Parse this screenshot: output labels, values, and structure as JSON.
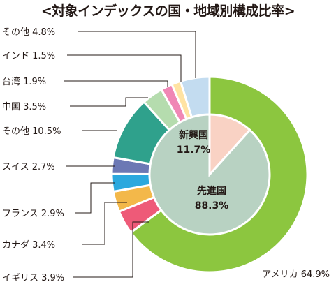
{
  "chart_data": {
    "type": "pie",
    "title": "<対象インデックスの国・地域別構成比率>",
    "outer": [
      {
        "name": "アメリカ",
        "value": 64.9,
        "label": "アメリカ 64.9%",
        "color": "#8cc63f"
      },
      {
        "name": "イギリス",
        "value": 3.9,
        "label": "イギリス 3.9%",
        "color": "#ee5a78"
      },
      {
        "name": "カナダ",
        "value": 3.4,
        "label": "カナダ 3.4%",
        "color": "#f3b84a"
      },
      {
        "name": "フランス",
        "value": 2.9,
        "label": "フランス 2.9%",
        "color": "#2ba8de"
      },
      {
        "name": "スイス",
        "value": 2.7,
        "label": "スイス 2.7%",
        "color": "#6c78b4"
      },
      {
        "name": "その他",
        "value": 10.5,
        "label": "その他 10.5%",
        "color": "#2fa18c"
      },
      {
        "name": "中国",
        "value": 3.5,
        "label": "中国 3.5%",
        "color": "#b5dcae"
      },
      {
        "name": "台湾",
        "value": 1.9,
        "label": "台湾 1.9%",
        "color": "#f087b5"
      },
      {
        "name": "インド",
        "value": 1.5,
        "label": "インド 1.5%",
        "color": "#ffe3a3"
      },
      {
        "name": "その他",
        "value": 4.8,
        "label": "その他 4.8%",
        "color": "#c3dcf0"
      }
    ],
    "inner": [
      {
        "name": "新興国",
        "value": 11.7,
        "label": "11.7%",
        "color": "#f9d2c4"
      },
      {
        "name": "先進国",
        "value": 88.3,
        "label": "88.3%",
        "color": "#b8d2c2"
      }
    ]
  }
}
